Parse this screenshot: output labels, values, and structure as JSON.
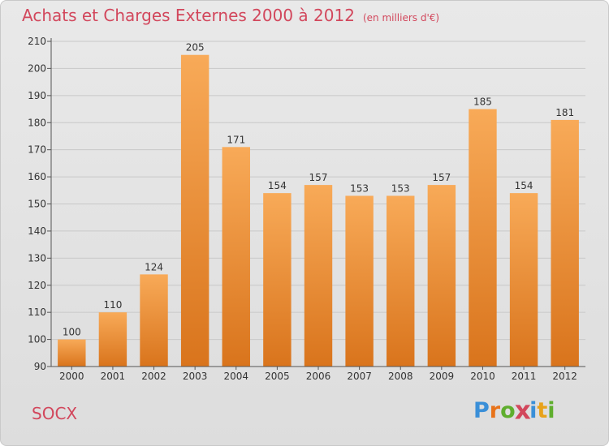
{
  "title": "Achats et Charges Externes 2000 à 2012",
  "subtitle": "(en milliers d'€)",
  "city": "SOCX",
  "logo": {
    "text": "Proxiti",
    "letters": [
      "P",
      "r",
      "o",
      "x",
      "i",
      "t",
      "i"
    ],
    "colors": [
      "#3a8fd8",
      "#e8731a",
      "#5fae2e",
      "#d2475c",
      "#3a8fd8",
      "#e8a21a",
      "#5fae2e"
    ]
  },
  "colors": {
    "title": "#d2475c",
    "bar_top": "#f8aa58",
    "bar_bottom": "#d9741c",
    "grid": "#c8c8c8"
  },
  "chart_data": {
    "type": "bar",
    "categories": [
      "2000",
      "2001",
      "2002",
      "2003",
      "2004",
      "2005",
      "2006",
      "2007",
      "2008",
      "2009",
      "2010",
      "2011",
      "2012"
    ],
    "values": [
      100,
      110,
      124,
      205,
      171,
      154,
      157,
      153,
      153,
      157,
      185,
      154,
      181
    ],
    "title": "Achats et Charges Externes 2000 à 2012",
    "xlabel": "",
    "ylabel": "",
    "ylim": [
      90,
      210
    ],
    "yticks": [
      90,
      100,
      110,
      120,
      130,
      140,
      150,
      160,
      170,
      180,
      190,
      200,
      210
    ],
    "grid": true
  }
}
